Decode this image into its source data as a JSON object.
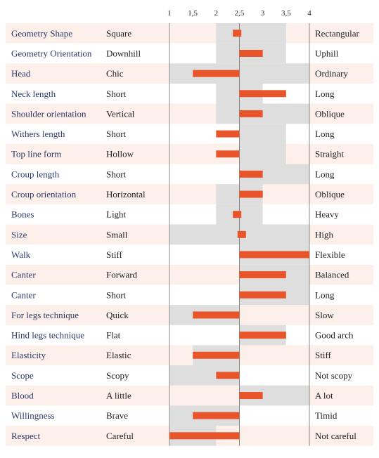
{
  "colors": {
    "row_alt": "#fdf0ea",
    "range": "#dedede",
    "bar": "#e8552a",
    "axis": "#888888",
    "trait_text": "#2b3a6b",
    "pole_text": "#222222"
  },
  "chart_data": {
    "type": "bar",
    "orientation": "horizontal",
    "baseline": 2.5,
    "xlim": [
      1,
      4
    ],
    "ticks": [
      "1",
      "1,5",
      "2",
      "2,5",
      "3",
      "3,5",
      "4"
    ],
    "tick_values": [
      1,
      1.5,
      2,
      2.5,
      3,
      3.5,
      4
    ],
    "gridlines": [
      1,
      2.5,
      4
    ],
    "rows": [
      {
        "trait": "Geometry Shape",
        "left": "Square",
        "right": "Rectangular",
        "range": [
          2,
          3.5
        ],
        "value": 2.4
      },
      {
        "trait": "Geometry Orientation",
        "left": "Downhill",
        "right": "Uphill",
        "range": [
          2,
          3.5
        ],
        "value": 3
      },
      {
        "trait": "Head",
        "left": "Chic",
        "right": "Ordinary",
        "range": [
          1,
          4
        ],
        "value": 1.5
      },
      {
        "trait": "Neck length",
        "left": "Short",
        "right": "Long",
        "range": [
          2,
          3
        ],
        "value": 3.5
      },
      {
        "trait": "Shoulder orientation",
        "left": "Vertical",
        "right": "Oblique",
        "range": [
          2,
          4
        ],
        "value": 3
      },
      {
        "trait": "Withers length",
        "left": "Short",
        "right": "Long",
        "range": [
          2.5,
          3.5
        ],
        "value": 2
      },
      {
        "trait": "Top line form",
        "left": "Hollow",
        "right": "Straight",
        "range": [
          2.5,
          3.5
        ],
        "value": 2
      },
      {
        "trait": "Croup length",
        "left": "Short",
        "right": "Long",
        "range": [
          2.5,
          4
        ],
        "value": 3
      },
      {
        "trait": "Croup orientation",
        "left": "Horizontal",
        "right": "Oblique",
        "range": [
          2,
          3
        ],
        "value": 3
      },
      {
        "trait": "Bones",
        "left": "Light",
        "right": "Heavy",
        "range": [
          2,
          3
        ],
        "value": 2.4
      },
      {
        "trait": "Size",
        "left": "Small",
        "right": "High",
        "range": [
          1,
          4
        ],
        "value": 2.6
      },
      {
        "trait": "Walk",
        "left": "Stiff",
        "right": "Flexible",
        "range": [
          2.5,
          4
        ],
        "value": 4
      },
      {
        "trait": "Canter",
        "left": "Forward",
        "right": "Balanced",
        "range": [
          2.5,
          4
        ],
        "value": 3.5
      },
      {
        "trait": "Canter",
        "left": "Short",
        "right": "Long",
        "range": [
          2.5,
          4
        ],
        "value": 3.5
      },
      {
        "trait": "For legs technique",
        "left": "Quick",
        "right": "Slow",
        "range": [
          1,
          2.5
        ],
        "value": 1.5
      },
      {
        "trait": "Hind legs technique",
        "left": "Flat",
        "right": "Good arch",
        "range": [
          2.5,
          3.5
        ],
        "value": 3.5
      },
      {
        "trait": "Elasticity",
        "left": "Elastic",
        "right": "Stiff",
        "range": [
          1.5,
          2.5
        ],
        "value": 1.5
      },
      {
        "trait": "Scope",
        "left": "Scopy",
        "right": "Not scopy",
        "range": [
          1,
          2.5
        ],
        "value": 2
      },
      {
        "trait": "Blood",
        "left": "A little",
        "right": "A lot",
        "range": [
          2.5,
          4
        ],
        "value": 3
      },
      {
        "trait": "Willingness",
        "left": "Brave",
        "right": "Timid",
        "range": [
          1,
          2.5
        ],
        "value": 1.5
      },
      {
        "trait": "Respect",
        "left": "Careful",
        "right": "Not careful",
        "range": [
          1,
          2
        ],
        "value": 1
      }
    ]
  }
}
